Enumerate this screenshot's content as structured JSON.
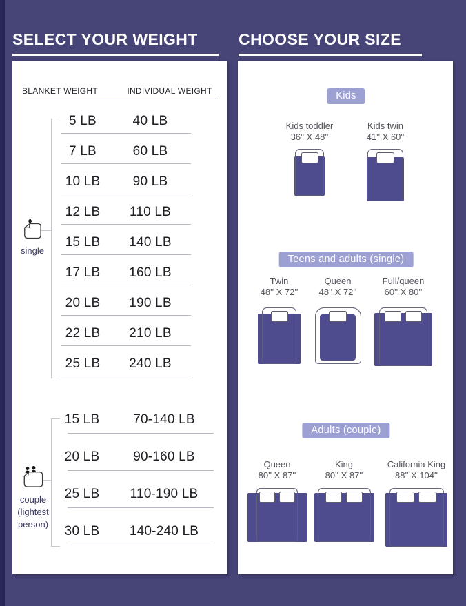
{
  "colors": {
    "background": "#474578",
    "edge_stripe": "#272457",
    "blanket": "#4e4b8e",
    "badge": "#9da0d2",
    "card": "#ffffff",
    "title_text": "#ffffff"
  },
  "left_panel": {
    "title": "SELECT YOUR WEIGHT",
    "columns": [
      "BLANKET WEIGHT",
      "INDIVIDUAL WEIGHT"
    ],
    "sections": [
      {
        "kind": "single",
        "label": "single",
        "icon": "single-person-under-blanket-icon",
        "rows": [
          {
            "blanket": "5 LB",
            "individual": "40 LB"
          },
          {
            "blanket": "7 LB",
            "individual": "60 LB"
          },
          {
            "blanket": "10 LB",
            "individual": "90 LB"
          },
          {
            "blanket": "12 LB",
            "individual": "110 LB"
          },
          {
            "blanket": "15 LB",
            "individual": "140 LB"
          },
          {
            "blanket": "17 LB",
            "individual": "160 LB"
          },
          {
            "blanket": "20 LB",
            "individual": "190 LB"
          },
          {
            "blanket": "22 LB",
            "individual": "210 LB"
          },
          {
            "blanket": "25 LB",
            "individual": "240 LB"
          }
        ]
      },
      {
        "kind": "couple",
        "label_lines": [
          "couple",
          "(lightest",
          "person)"
        ],
        "icon": "couple-under-blanket-icon",
        "rows": [
          {
            "blanket": "15 LB",
            "individual": "70-140 LB"
          },
          {
            "blanket": "20 LB",
            "individual": "90-160 LB"
          },
          {
            "blanket": "25 LB",
            "individual": "110-190 LB"
          },
          {
            "blanket": "30 LB",
            "individual": "140-240 LB"
          }
        ]
      }
    ]
  },
  "right_panel": {
    "title": "CHOOSE YOUR SIZE",
    "groups": [
      {
        "badge": "Kids",
        "items": [
          {
            "name": "Kids toddler",
            "size": "36'' X 48''",
            "bed": {
              "fw": 42,
              "fh": 68,
              "bw": 44,
              "bt": 11,
              "p": 1,
              "pw": 25,
              "r": 7
            }
          },
          {
            "name": "Kids twin",
            "size": "41'' X 60''",
            "bed": {
              "fw": 52,
              "fh": 76,
              "bw": 54,
              "bt": 12,
              "p": 1,
              "pw": 26,
              "r": 7
            }
          }
        ]
      },
      {
        "badge": "Teens and adults (single)",
        "items": [
          {
            "name": "Twin",
            "size": "48'' X 72''",
            "bed": {
              "fw": 50,
              "fh": 82,
              "bw": 62,
              "bt": 9,
              "p": 1,
              "pw": 25,
              "r": 7
            }
          },
          {
            "name": "Queen",
            "size": "48'' X 72''",
            "bed": {
              "fw": 67,
              "fh": 82,
              "bw": 52,
              "bt": 10,
              "p": 1,
              "pw": 26,
              "r": 13,
              "bi": 5
            }
          },
          {
            "name": "Full/queen",
            "size": "60'' X 80''",
            "bed": {
              "fw": 70,
              "fh": 85,
              "bw": 84,
              "bt": 8,
              "p": 2,
              "pw": 24,
              "r": 7
            }
          }
        ]
      },
      {
        "badge": "Adults (couple)",
        "items": [
          {
            "name": "Queen",
            "size": "80'' X 87''",
            "bed": {
              "fw": 60,
              "fh": 78,
              "bw": 87,
              "bt": 7,
              "p": 2,
              "pw": 23,
              "r": 6
            }
          },
          {
            "name": "King",
            "size": "80'' X 87''",
            "bed": {
              "fw": 77,
              "fh": 78,
              "bw": 87,
              "bt": 7,
              "p": 2,
              "pw": 24,
              "r": 6
            }
          },
          {
            "name": "California King",
            "size": "88'' X 104''",
            "bed": {
              "fw": 79,
              "fh": 85,
              "bw": 90,
              "bt": 7,
              "p": 2,
              "pw": 26,
              "r": 6
            }
          }
        ]
      }
    ]
  }
}
